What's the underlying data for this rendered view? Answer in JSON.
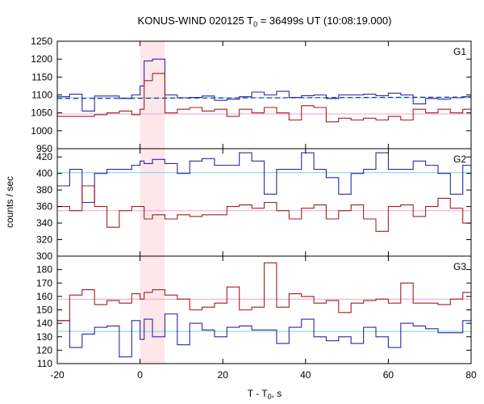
{
  "chart_data": {
    "type": "line",
    "subtype": "step-histogram",
    "title": "KONUS-WIND 020125 T",
    "title_sub": "0",
    "title_rest": " = 36499s UT (10:08:19.000)",
    "xlabel": "T - T",
    "xlabel_sub": "0",
    "xlabel_rest": ", s",
    "ylabel": "counts / sec",
    "xlim": [
      -20,
      80
    ],
    "xticks": [
      -20,
      0,
      20,
      40,
      60,
      80
    ],
    "highlight_interval": [
      0,
      6
    ],
    "colors": {
      "blue": "#2a2aa5",
      "red": "#a51f1f",
      "cyan": "#6fd6ee",
      "pink": "#f2a0d8",
      "shade": "#fde7ea"
    },
    "panels": [
      {
        "label": "G1",
        "ylim": [
          950,
          1250
        ],
        "yticks": [
          950,
          1000,
          1050,
          1100,
          1150,
          1200,
          1250
        ],
        "bkg_blue": 1092,
        "bkg_red": 1047,
        "dashed_blue": [
          -20,
          80,
          1090,
          1094
        ],
        "x_edges": [
          -20,
          -17,
          -14,
          -11,
          -8,
          -5,
          -2,
          0,
          1,
          3,
          6,
          9,
          12,
          15,
          18,
          21,
          24,
          27,
          30,
          33,
          36,
          39,
          42,
          45,
          48,
          51,
          54,
          57,
          60,
          63,
          66,
          69,
          72,
          75,
          78,
          80
        ],
        "series": [
          {
            "name": "",
            "color": "blue",
            "values": [
              1095,
              1102,
              1055,
              1097,
              1097,
              1090,
              1100,
              1125,
              1195,
              1200,
              1100,
              1092,
              1093,
              1097,
              1085,
              1088,
              1095,
              1108,
              1100,
              1110,
              1093,
              1098,
              1100,
              1090,
              1100,
              1100,
              1102,
              1098,
              1105,
              1100,
              1075,
              1090,
              1088,
              1092,
              1095
            ]
          },
          {
            "name": "",
            "color": "red",
            "values": [
              1040,
              1040,
              1040,
              1045,
              1050,
              1055,
              1045,
              1060,
              1140,
              1160,
              1050,
              1060,
              1065,
              1055,
              1060,
              1040,
              1060,
              1050,
              1065,
              1050,
              1030,
              1070,
              1065,
              1025,
              1035,
              1030,
              1035,
              1030,
              1040,
              1030,
              1060,
              1050,
              1060,
              1050,
              1060
            ]
          }
        ]
      },
      {
        "label": "G2",
        "ylim": [
          300,
          430
        ],
        "yticks": [
          300,
          320,
          340,
          360,
          380,
          400,
          420
        ],
        "bkg_blue": 401,
        "bkg_red": 355,
        "x_edges": [
          -20,
          -17,
          -14,
          -11,
          -8,
          -5,
          -2,
          0,
          1,
          3,
          6,
          9,
          12,
          15,
          18,
          21,
          24,
          27,
          30,
          33,
          36,
          39,
          42,
          45,
          48,
          51,
          54,
          57,
          60,
          63,
          66,
          69,
          72,
          75,
          78,
          80
        ],
        "series": [
          {
            "name": "",
            "color": "blue",
            "values": [
              385,
              405,
              365,
              400,
              405,
              405,
              410,
              415,
              412,
              417,
              412,
              400,
              415,
              418,
              410,
              410,
              425,
              415,
              375,
              405,
              405,
              425,
              405,
              395,
              375,
              400,
              405,
              425,
              405,
              405,
              415,
              410,
              400,
              375,
              410
            ]
          },
          {
            "name": "",
            "color": "red",
            "values": [
              360,
              355,
              385,
              360,
              335,
              355,
              360,
              360,
              345,
              350,
              345,
              350,
              348,
              350,
              350,
              360,
              362,
              358,
              365,
              355,
              345,
              358,
              362,
              345,
              355,
              362,
              345,
              330,
              360,
              362,
              348,
              360,
              370,
              358,
              340
            ]
          }
        ]
      },
      {
        "label": "G3",
        "ylim": [
          110,
          190
        ],
        "yticks": [
          110,
          120,
          130,
          140,
          150,
          160,
          170,
          180
        ],
        "bkg_blue": 134,
        "bkg_red": 158,
        "x_edges": [
          -20,
          -17,
          -14,
          -11,
          -8,
          -5,
          -2,
          0,
          1,
          3,
          6,
          9,
          12,
          15,
          18,
          21,
          24,
          27,
          30,
          33,
          36,
          39,
          42,
          45,
          48,
          51,
          54,
          57,
          60,
          63,
          66,
          69,
          72,
          75,
          78,
          80
        ],
        "series": [
          {
            "name": "",
            "color": "blue",
            "values": [
              142,
              122,
              132,
              137,
              138,
              115,
              142,
              128,
              143,
              130,
              147,
              124,
              140,
              135,
              130,
              137,
              138,
              135,
              135,
              125,
              137,
              143,
              130,
              127,
              130,
              125,
              137,
              130,
              122,
              140,
              138,
              136,
              133,
              133,
              142
            ]
          },
          {
            "name": "",
            "color": "red",
            "values": [
              142,
              161,
              165,
              154,
              157,
              155,
              162,
              158,
              163,
              165,
              161,
              158,
              150,
              152,
              155,
              167,
              150,
              152,
              185,
              152,
              162,
              160,
              155,
              157,
              148,
              155,
              157,
              158,
              155,
              170,
              155,
              155,
              154,
              158,
              163
            ]
          }
        ]
      }
    ]
  }
}
